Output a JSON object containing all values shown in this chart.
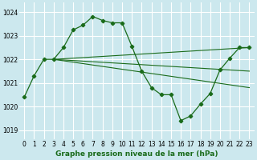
{
  "bg_color": "#cce8ee",
  "grid_color": "#ffffff",
  "line_color": "#1a6b1a",
  "title": "Graphe pression niveau de la mer (hPa)",
  "yticks": [
    1019,
    1020,
    1021,
    1022,
    1023,
    1024
  ],
  "ylim": [
    1018.6,
    1024.4
  ],
  "xlim": [
    -0.5,
    23.5
  ],
  "main_x": [
    0,
    1,
    2,
    3,
    4,
    5,
    6,
    7,
    8,
    9,
    10,
    11,
    12,
    13,
    14,
    15,
    16,
    17,
    18,
    19,
    20,
    21,
    22,
    23
  ],
  "main_y": [
    1020.4,
    1021.3,
    1022.0,
    1022.0,
    1022.5,
    1023.25,
    1023.45,
    1023.82,
    1023.65,
    1023.55,
    1023.55,
    1022.55,
    1021.5,
    1020.8,
    1020.5,
    1020.5,
    1019.4,
    1019.6,
    1020.1,
    1020.55,
    1021.55,
    1022.05,
    1022.5,
    1022.5
  ],
  "line1_x": [
    3,
    23
  ],
  "line1_y": [
    1022.0,
    1022.5
  ],
  "line2_x": [
    3,
    23
  ],
  "line2_y": [
    1022.0,
    1021.5
  ],
  "line3_x": [
    3,
    23
  ],
  "line3_y": [
    1022.0,
    1020.8
  ],
  "title_fontsize": 6.5,
  "tick_fontsize": 5.5
}
